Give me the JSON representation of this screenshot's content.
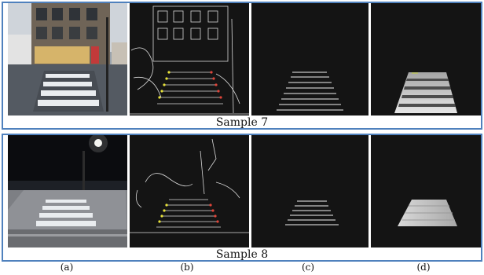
{
  "samples": [
    {
      "caption": "Sample 7"
    },
    {
      "caption": "Sample 8"
    }
  ],
  "sublabels": [
    "(a)",
    "(b)",
    "(c)",
    "(d)"
  ],
  "colors": {
    "border": "#4f81bd",
    "image_bg": "#141414"
  }
}
